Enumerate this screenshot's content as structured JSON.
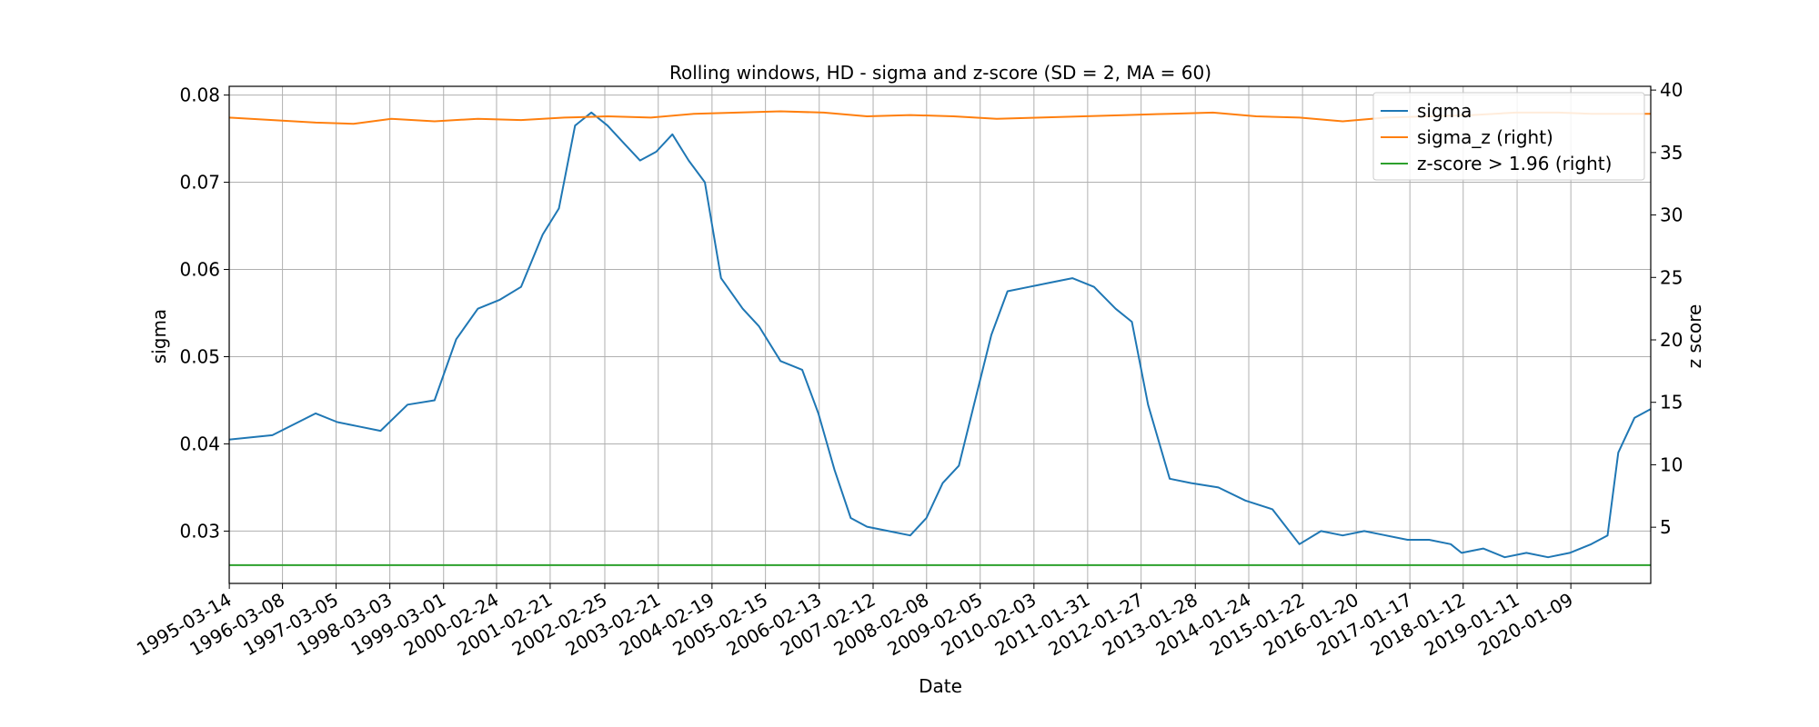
{
  "chart_data": {
    "type": "line",
    "title": "Rolling windows, HD - sigma and z-score (SD = 2, MA = 60)",
    "xlabel": "Date",
    "ylabel_left": "sigma",
    "ylabel_right": "z score",
    "grid": true,
    "legend_position": "top-right",
    "x_tick_labels": [
      "1995-03-14",
      "1996-03-08",
      "1997-03-05",
      "1998-03-03",
      "1999-03-01",
      "2000-02-24",
      "2001-02-21",
      "2002-02-25",
      "2003-02-21",
      "2004-02-19",
      "2005-02-15",
      "2006-02-13",
      "2007-02-12",
      "2008-02-08",
      "2009-02-05",
      "2010-02-03",
      "2011-01-31",
      "2012-01-27",
      "2013-01-28",
      "2014-01-24",
      "2015-01-22",
      "2016-01-20",
      "2017-01-17",
      "2018-01-12",
      "2019-01-11",
      "2020-01-09"
    ],
    "x_range_years": [
      1995.2,
      2021.5
    ],
    "y_left": {
      "lim": [
        0.024,
        0.081
      ],
      "ticks": [
        0.03,
        0.04,
        0.05,
        0.06,
        0.07,
        0.08
      ],
      "tick_labels": [
        "0.03",
        "0.04",
        "0.05",
        "0.06",
        "0.07",
        "0.08"
      ]
    },
    "y_right": {
      "lim": [
        0.5,
        40.3
      ],
      "ticks": [
        5,
        10,
        15,
        20,
        25,
        30,
        35,
        40
      ],
      "tick_labels": [
        "5",
        "10",
        "15",
        "20",
        "25",
        "30",
        "35",
        "40"
      ]
    },
    "series": [
      {
        "name": "sigma",
        "axis": "left",
        "color": "#1f77b4",
        "x": [
          1995.2,
          1996.0,
          1996.8,
          1997.2,
          1997.6,
          1998.0,
          1998.5,
          1999.0,
          1999.4,
          1999.8,
          2000.2,
          2000.6,
          2001.0,
          2001.3,
          2001.6,
          2001.9,
          2002.2,
          2002.5,
          2002.8,
          2003.1,
          2003.4,
          2003.7,
          2004.0,
          2004.3,
          2004.7,
          2005.0,
          2005.4,
          2005.8,
          2006.1,
          2006.4,
          2006.7,
          2007.0,
          2007.4,
          2007.8,
          2008.1,
          2008.4,
          2008.7,
          2009.0,
          2009.3,
          2009.6,
          2010.0,
          2010.4,
          2010.8,
          2011.2,
          2011.6,
          2011.9,
          2012.2,
          2012.6,
          2013.0,
          2013.5,
          2014.0,
          2014.5,
          2015.0,
          2015.4,
          2015.8,
          2016.2,
          2016.6,
          2017.0,
          2017.4,
          2017.8,
          2018.0,
          2018.4,
          2018.8,
          2019.2,
          2019.6,
          2020.0,
          2020.4,
          2020.7,
          2020.9,
          2021.2,
          2021.5
        ],
        "y": [
          0.0405,
          0.041,
          0.0435,
          0.0425,
          0.042,
          0.0415,
          0.0445,
          0.045,
          0.052,
          0.0555,
          0.0565,
          0.058,
          0.064,
          0.067,
          0.0765,
          0.078,
          0.0765,
          0.0745,
          0.0725,
          0.0735,
          0.0755,
          0.0725,
          0.07,
          0.059,
          0.0555,
          0.0535,
          0.0495,
          0.0485,
          0.0435,
          0.037,
          0.0315,
          0.0305,
          0.03,
          0.0295,
          0.0315,
          0.0355,
          0.0375,
          0.045,
          0.0525,
          0.0575,
          0.058,
          0.0585,
          0.059,
          0.058,
          0.0555,
          0.054,
          0.0445,
          0.036,
          0.0355,
          0.035,
          0.0335,
          0.0325,
          0.0285,
          0.03,
          0.0295,
          0.03,
          0.0295,
          0.029,
          0.029,
          0.0285,
          0.0275,
          0.028,
          0.027,
          0.0275,
          0.027,
          0.0275,
          0.0285,
          0.0295,
          0.039,
          0.043,
          0.044
        ]
      },
      {
        "name": "sigma_z (right)",
        "axis": "right",
        "color": "#ff7f0e",
        "x": [
          1995.2,
          1996.0,
          1996.8,
          1997.5,
          1998.2,
          1999.0,
          1999.8,
          2000.6,
          2001.4,
          2002.2,
          2003.0,
          2003.8,
          2004.6,
          2005.4,
          2006.2,
          2007.0,
          2007.8,
          2008.6,
          2009.4,
          2010.2,
          2011.0,
          2011.8,
          2012.6,
          2013.4,
          2014.2,
          2015.0,
          2015.8,
          2016.6,
          2017.4,
          2018.2,
          2019.0,
          2019.8,
          2020.4,
          2021.0,
          2021.5
        ],
        "y": [
          37.8,
          37.6,
          37.4,
          37.3,
          37.7,
          37.5,
          37.7,
          37.6,
          37.8,
          37.9,
          37.8,
          38.1,
          38.2,
          38.3,
          38.2,
          37.9,
          38.0,
          37.9,
          37.7,
          37.8,
          37.9,
          38.0,
          38.1,
          38.2,
          37.9,
          37.8,
          37.5,
          37.8,
          37.9,
          38.0,
          38.2,
          38.2,
          38.1,
          38.1,
          38.1
        ]
      },
      {
        "name": "z-score > 1.96 (right)",
        "axis": "right",
        "color": "#2ca02c",
        "x": [
          1995.2,
          2021.5
        ],
        "y": [
          1.96,
          1.96
        ]
      }
    ]
  }
}
